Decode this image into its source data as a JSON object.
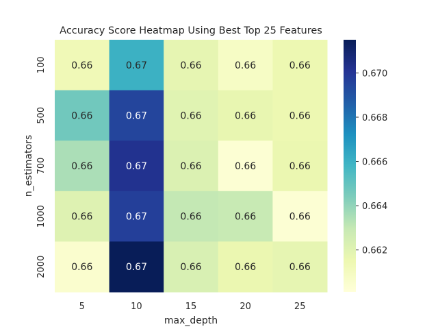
{
  "chart_data": {
    "type": "heatmap",
    "title": "Accuracy Score Heatmap Using Best Top 25 Features",
    "xlabel": "max_depth",
    "ylabel": "n_estimators",
    "x_categories": [
      "5",
      "10",
      "15",
      "20",
      "25"
    ],
    "y_categories": [
      "100",
      "500",
      "700",
      "1000",
      "2000"
    ],
    "values": [
      [
        0.6613,
        0.666,
        0.6618,
        0.6608,
        0.6615
      ],
      [
        0.6647,
        0.6695,
        0.662,
        0.6617,
        0.6615
      ],
      [
        0.6635,
        0.6702,
        0.6622,
        0.6603,
        0.6616
      ],
      [
        0.6621,
        0.6697,
        0.663,
        0.6629,
        0.6603
      ],
      [
        0.6605,
        0.6716,
        0.6623,
        0.6616,
        0.6618
      ]
    ],
    "annotations": [
      [
        "0.66",
        "0.67",
        "0.66",
        "0.66",
        "0.66"
      ],
      [
        "0.66",
        "0.67",
        "0.66",
        "0.66",
        "0.66"
      ],
      [
        "0.66",
        "0.67",
        "0.66",
        "0.66",
        "0.66"
      ],
      [
        "0.66",
        "0.67",
        "0.66",
        "0.66",
        "0.66"
      ],
      [
        "0.66",
        "0.67",
        "0.66",
        "0.66",
        "0.66"
      ]
    ],
    "colormap": "YlGnBu",
    "vmin": 0.6601,
    "vmax": 0.6715,
    "colorbar_ticks": [
      "0.662",
      "0.664",
      "0.666",
      "0.668",
      "0.670"
    ],
    "colorbar_tick_values": [
      0.662,
      0.664,
      0.666,
      0.668,
      0.67
    ],
    "grid": false,
    "colorbar_position": "right"
  }
}
